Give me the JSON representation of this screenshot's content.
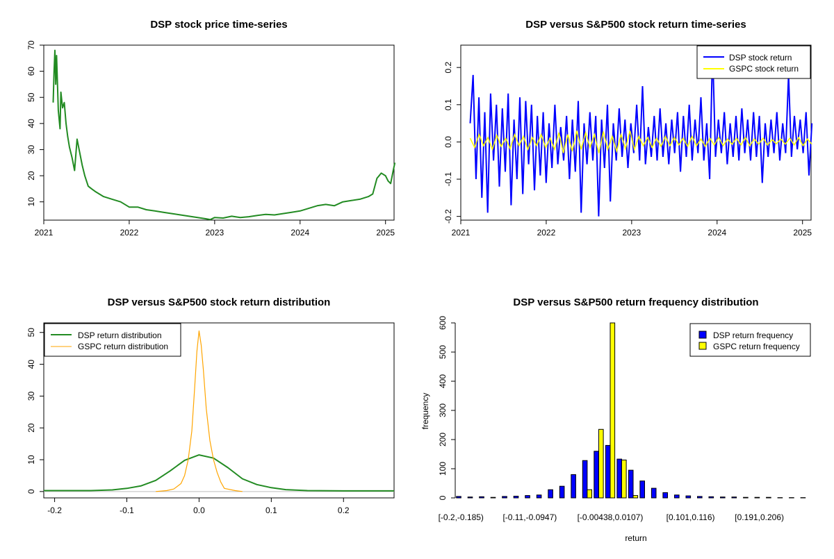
{
  "chart_data": [
    {
      "type": "line",
      "title": "DSP stock price time-series",
      "xlabel": "",
      "ylabel": "",
      "xlim": [
        2021.0,
        2025.1
      ],
      "ylim": [
        3,
        70
      ],
      "x_ticks": [
        2021,
        2022,
        2023,
        2024,
        2025
      ],
      "x_tick_labels": [
        "2021",
        "2022",
        "2023",
        "2024",
        "2025"
      ],
      "y_ticks": [
        10,
        20,
        30,
        40,
        50,
        60,
        70
      ],
      "y_tick_labels": [
        "10",
        "20",
        "30",
        "40",
        "50",
        "60",
        "70"
      ],
      "color": "#228b22",
      "series": [
        {
          "name": "DSP price",
          "x": [
            2021.11,
            2021.12,
            2021.13,
            2021.14,
            2021.15,
            2021.17,
            2021.19,
            2021.2,
            2021.22,
            2021.24,
            2021.26,
            2021.28,
            2021.3,
            2021.33,
            2021.36,
            2021.39,
            2021.42,
            2021.45,
            2021.48,
            2021.52,
            2021.56,
            2021.6,
            2021.65,
            2021.7,
            2021.8,
            2021.9,
            2022.0,
            2022.1,
            2022.2,
            2022.3,
            2022.4,
            2022.5,
            2022.6,
            2022.7,
            2022.8,
            2022.9,
            2022.95,
            2023.0,
            2023.1,
            2023.2,
            2023.3,
            2023.4,
            2023.5,
            2023.6,
            2023.7,
            2023.8,
            2023.9,
            2024.0,
            2024.1,
            2024.2,
            2024.3,
            2024.4,
            2024.5,
            2024.6,
            2024.7,
            2024.8,
            2024.85,
            2024.9,
            2024.95,
            2025.0,
            2025.03,
            2025.06,
            2025.09,
            2025.11
          ],
          "values": [
            48,
            60,
            68,
            55,
            66,
            45,
            38,
            52,
            46,
            48,
            40,
            35,
            31,
            27,
            22,
            34,
            29,
            24,
            20,
            16,
            15,
            14,
            13,
            12,
            11,
            10,
            8,
            8,
            7,
            6.5,
            6,
            5.5,
            5,
            4.5,
            4,
            3.5,
            3.2,
            4,
            3.8,
            4.5,
            4,
            4.3,
            4.8,
            5.2,
            5,
            5.5,
            6,
            6.5,
            7.5,
            8.5,
            9,
            8.5,
            10,
            10.5,
            11,
            12,
            13,
            19,
            21,
            20,
            18,
            17,
            22,
            25
          ]
        }
      ]
    },
    {
      "type": "line",
      "title": "DSP versus S&P500 stock return time-series",
      "xlabel": "",
      "ylabel": "",
      "xlim": [
        2021.0,
        2025.1
      ],
      "ylim": [
        -0.21,
        0.26
      ],
      "x_ticks": [
        2021,
        2022,
        2023,
        2024,
        2025
      ],
      "x_tick_labels": [
        "2021",
        "2022",
        "2023",
        "2024",
        "2025"
      ],
      "y_ticks": [
        -0.2,
        -0.1,
        0.0,
        0.1,
        0.2
      ],
      "y_tick_labels": [
        "-0.2",
        "-0.1",
        "0.0",
        "0.1",
        "0.2"
      ],
      "legend": "top-right",
      "series": [
        {
          "name": "DSP stock return",
          "color": "#0000ff",
          "x_start": 2021.11,
          "x_end": 2025.11,
          "values": [
            0.05,
            0.18,
            -0.1,
            0.12,
            -0.15,
            0.08,
            -0.19,
            0.13,
            -0.05,
            0.1,
            -0.12,
            0.09,
            -0.08,
            0.13,
            -0.17,
            0.06,
            -0.1,
            0.12,
            -0.14,
            0.11,
            -0.06,
            0.1,
            -0.13,
            0.07,
            -0.09,
            0.08,
            -0.11,
            0.05,
            -0.07,
            0.1,
            -0.06,
            0.04,
            -0.05,
            0.07,
            -0.1,
            0.06,
            -0.08,
            0.11,
            -0.19,
            0.05,
            -0.06,
            0.08,
            -0.05,
            0.07,
            -0.2,
            0.06,
            -0.07,
            0.1,
            -0.16,
            0.05,
            -0.05,
            0.09,
            -0.04,
            0.06,
            -0.07,
            0.05,
            -0.03,
            0.1,
            -0.05,
            0.15,
            -0.06,
            0.04,
            -0.04,
            0.07,
            -0.05,
            0.09,
            -0.04,
            0.05,
            -0.06,
            0.06,
            -0.03,
            0.08,
            -0.08,
            0.07,
            -0.04,
            0.1,
            -0.05,
            0.06,
            -0.03,
            0.12,
            -0.05,
            0.05,
            -0.1,
            0.25,
            -0.04,
            0.06,
            -0.03,
            0.08,
            -0.06,
            0.05,
            -0.04,
            0.07,
            -0.05,
            0.09,
            -0.03,
            0.06,
            -0.05,
            0.08,
            -0.04,
            0.07,
            -0.11,
            0.05,
            -0.04,
            0.06,
            -0.03,
            0.08,
            -0.05,
            0.05,
            -0.03,
            0.18,
            -0.04,
            0.07,
            -0.02,
            0.06,
            -0.03,
            0.08,
            -0.09,
            0.05
          ],
          "legend_label": "DSP stock return"
        },
        {
          "name": "GSPC stock return",
          "color": "#ffff00",
          "x_start": 2021.11,
          "x_end": 2025.11,
          "values": [
            0.01,
            -0.015,
            0.02,
            -0.01,
            0.012,
            -0.02,
            0.018,
            -0.012,
            0.01,
            -0.018,
            0.02,
            -0.01,
            0.015,
            -0.02,
            0.012,
            -0.01,
            0.02,
            -0.015,
            0.01,
            -0.02,
            0.025,
            -0.03,
            0.02,
            -0.025,
            0.03,
            -0.02,
            0.025,
            -0.015,
            0.02,
            -0.03,
            0.028,
            -0.02,
            0.015,
            -0.025,
            0.02,
            -0.018,
            0.03,
            -0.02,
            0.015,
            -0.01,
            0.012,
            -0.015,
            0.01,
            -0.012,
            0.015,
            -0.01,
            0.012,
            -0.008,
            0.01,
            -0.012,
            0.015,
            -0.01,
            0.008,
            -0.012,
            0.01,
            -0.008,
            0.012,
            -0.01,
            0.008,
            -0.006,
            0.01,
            -0.008,
            0.012,
            -0.01,
            0.008,
            -0.006,
            0.01,
            -0.008,
            0.006,
            -0.005,
            0.008,
            -0.006,
            0.01,
            -0.008,
            0.012,
            -0.01,
            0.008,
            -0.006
          ],
          "legend_label": "GSPC stock return"
        }
      ]
    },
    {
      "type": "line",
      "title": "DSP versus S&P500 stock return distribution",
      "xlabel": "",
      "ylabel": "",
      "xlim": [
        -0.215,
        0.27
      ],
      "ylim": [
        -2,
        53
      ],
      "x_ticks": [
        -0.2,
        -0.1,
        0.0,
        0.1,
        0.2
      ],
      "x_tick_labels": [
        "-0.2",
        "-0.1",
        "0.0",
        "0.1",
        "0.2"
      ],
      "y_ticks": [
        0,
        10,
        20,
        30,
        40,
        50
      ],
      "y_tick_labels": [
        "0",
        "10",
        "20",
        "30",
        "40",
        "50"
      ],
      "legend": "top-left",
      "series": [
        {
          "name": "DSP return distribution",
          "color": "#228b22",
          "x": [
            -0.215,
            -0.2,
            -0.15,
            -0.12,
            -0.1,
            -0.08,
            -0.06,
            -0.04,
            -0.02,
            0.0,
            0.02,
            0.04,
            0.06,
            0.08,
            0.1,
            0.12,
            0.15,
            0.2,
            0.25,
            0.27
          ],
          "values": [
            0.3,
            0.3,
            0.3,
            0.5,
            1.0,
            1.8,
            3.5,
            6.5,
            9.8,
            11.5,
            10.5,
            7.5,
            4.0,
            2.2,
            1.2,
            0.6,
            0.3,
            0.2,
            0.2,
            0.2
          ]
        },
        {
          "name": "GSPC return distribution",
          "color": "#ffa500",
          "x": [
            -0.06,
            -0.045,
            -0.035,
            -0.025,
            -0.02,
            -0.015,
            -0.01,
            -0.006,
            -0.003,
            0.0,
            0.003,
            0.006,
            0.01,
            0.015,
            0.02,
            0.025,
            0.03,
            0.035,
            0.05,
            0.06
          ],
          "values": [
            0,
            0.3,
            0.8,
            2.5,
            5,
            10,
            19,
            33,
            44,
            50.5,
            46,
            38,
            26,
            16,
            10,
            6,
            3,
            1,
            0.3,
            0
          ]
        }
      ]
    },
    {
      "type": "bar",
      "title": "DSP versus S&P500 return frequency distribution",
      "xlabel": "return",
      "ylabel": "frequency",
      "ylim": [
        0,
        600
      ],
      "y_ticks": [
        0,
        100,
        200,
        300,
        400,
        500,
        600
      ],
      "y_tick_labels": [
        "0",
        "100",
        "200",
        "300",
        "400",
        "500",
        "600"
      ],
      "x_tick_labels": [
        "[-0.2,-0.185)",
        "[-0.11,-0.0947)",
        "[-0.00438,0.0107)",
        "[0.101,0.116)",
        "[0.191,0.206)"
      ],
      "x_tick_bins": [
        0,
        6,
        13,
        20,
        26
      ],
      "legend": "top-right",
      "bin_count": 31,
      "series": [
        {
          "name": "DSP return frequency",
          "color": "#0000ff",
          "values": [
            5,
            3,
            4,
            2,
            5,
            6,
            8,
            10,
            28,
            40,
            80,
            128,
            160,
            180,
            133,
            95,
            58,
            33,
            18,
            10,
            7,
            5,
            4,
            3,
            3,
            2,
            2,
            2,
            1,
            1,
            1
          ],
          "legend_label": "DSP return frequency"
        },
        {
          "name": "GSPC return frequency",
          "color": "#ffff00",
          "values": [
            0,
            0,
            0,
            0,
            0,
            0,
            0,
            0,
            0,
            0,
            0,
            28,
            235,
            600,
            130,
            8,
            0,
            0,
            0,
            0,
            0,
            0,
            0,
            0,
            0,
            0,
            0,
            0,
            0,
            0,
            0
          ],
          "legend_label": "GSPC return frequency"
        }
      ]
    }
  ]
}
